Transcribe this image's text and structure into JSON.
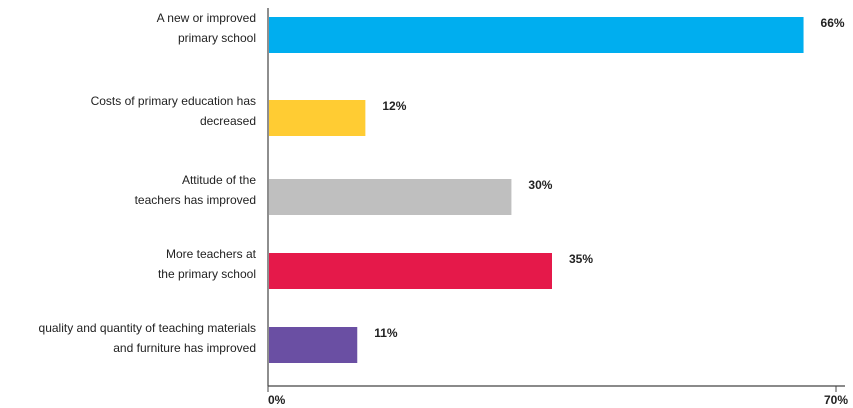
{
  "chart_data": {
    "type": "bar",
    "orientation": "horizontal",
    "categories": [
      [
        "A new or improved",
        "primary school"
      ],
      [
        "Costs of primary education has",
        "decreased"
      ],
      [
        "Attitude of the",
        "teachers has improved"
      ],
      [
        "More teachers at",
        "the primary school"
      ],
      [
        "quality and quantity of teaching materials",
        "and furniture has improved"
      ]
    ],
    "values": [
      66,
      12,
      30,
      35,
      11
    ],
    "value_labels": [
      "66%",
      "12%",
      "30%",
      "35%",
      "11%"
    ],
    "colors": [
      "#00aeef",
      "#ffcc33",
      "#bfbfbf",
      "#e5194a",
      "#6a4fa3"
    ],
    "xlim": [
      0,
      70
    ],
    "x_ticks": [
      "0%",
      "70%"
    ],
    "grid": false,
    "legend": "none"
  }
}
